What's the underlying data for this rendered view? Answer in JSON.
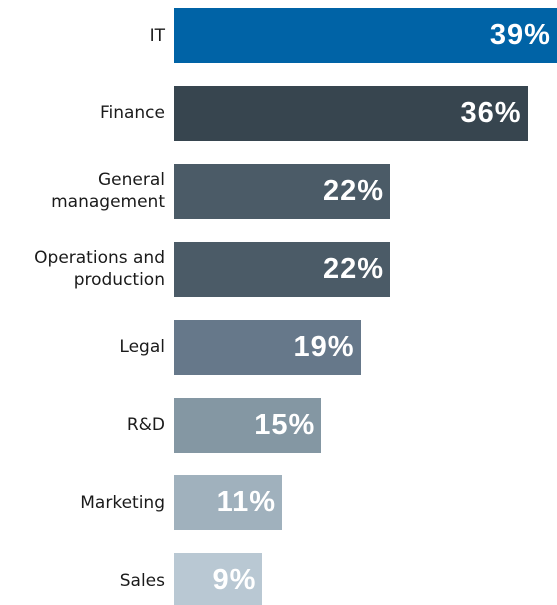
{
  "chart_data": {
    "type": "bar",
    "orientation": "horizontal",
    "categories": [
      "IT",
      "Finance",
      "General\nmanagement",
      "Operations and\nproduction",
      "Legal",
      "R&D",
      "Marketing",
      "Sales"
    ],
    "values": [
      39,
      36,
      22,
      22,
      19,
      15,
      11,
      9
    ],
    "value_labels": [
      "39%",
      "36%",
      "22%",
      "22%",
      "19%",
      "15%",
      "11%",
      "9%"
    ],
    "colors": [
      "#0063a6",
      "#37454f",
      "#4b5b67",
      "#4b5b67",
      "#66788a",
      "#8497a3",
      "#a0b1bd",
      "#b9c8d3"
    ]
  }
}
